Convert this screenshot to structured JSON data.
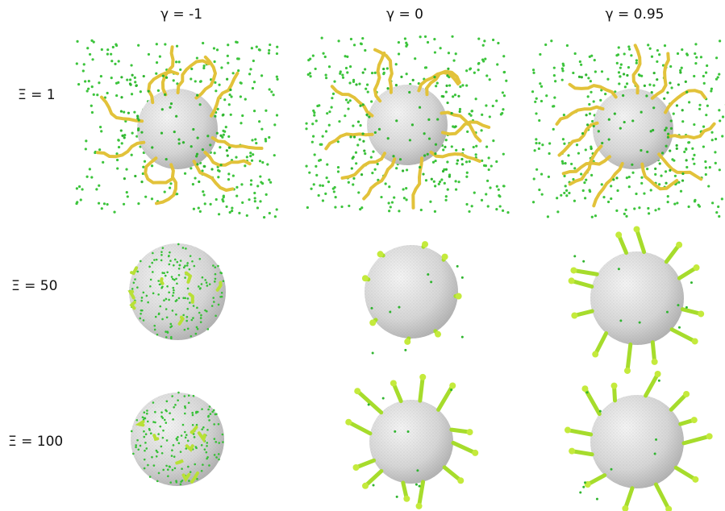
{
  "columns": [
    "γ = -1",
    "γ = 0",
    "γ = 0.95"
  ],
  "rows": [
    "Ξ = 1",
    "Ξ = 50",
    "Ξ = 100"
  ]
}
